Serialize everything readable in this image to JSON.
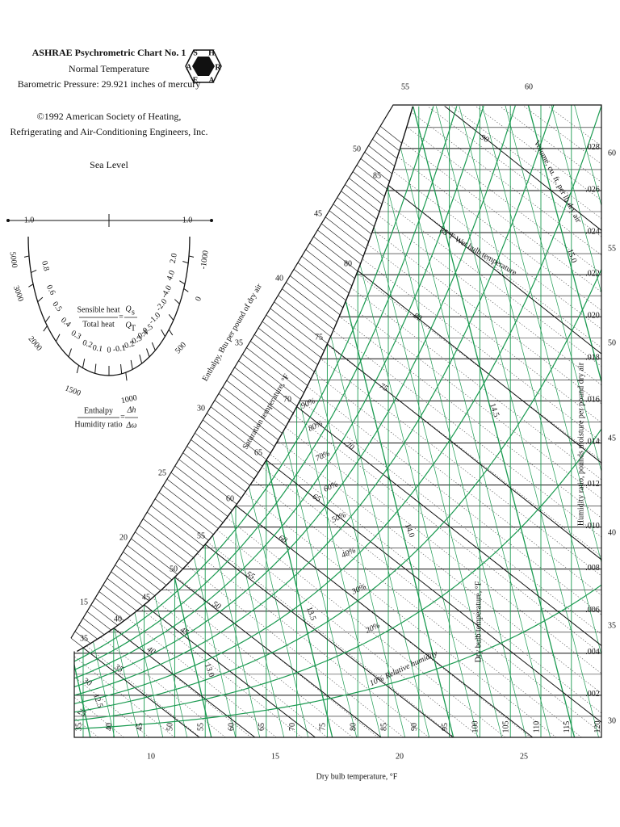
{
  "header": {
    "title": "ASHRAE Psychrometric Chart No. 1",
    "subtitle": "Normal Temperature",
    "pressure": "Barometric Pressure: 29.921 inches of mercury",
    "copyright": [
      "©1992 American Society of Heating,",
      "Refrigerating and Air-Conditioning Engineers, Inc."
    ],
    "location": "Sea Level",
    "logo": [
      "S",
      "H",
      "R",
      "A",
      "E",
      "A"
    ]
  },
  "protractor": {
    "end_labels": [
      "1.0",
      "1.0"
    ],
    "inner_labels": [
      "0.8",
      "0.6",
      "0.5",
      "0.4",
      "0.3",
      "0.2",
      "0.1",
      "0",
      "-0.1",
      "-0.2",
      "-0.3",
      "-0.4",
      "-0.5",
      "-1.0",
      "-2.0",
      "-4.0",
      "4.0",
      "2.0"
    ],
    "outer_labels": [
      "5000",
      "3000",
      "2000",
      "1500",
      "1000",
      "500",
      "0",
      "-1000"
    ],
    "sensible": {
      "numerator": "Sensible heat",
      "denominator": "Total heat",
      "equals": "=",
      "q_numerator": "Q",
      "q_numerator_sub": "s",
      "q_denominator": "Q",
      "q_denominator_sub": "T"
    },
    "enthalpy": {
      "numerator": "Enthalpy",
      "denominator": "Humidity ratio",
      "equals": "=",
      "d_numerator": "Δh",
      "d_denominator": "Δω"
    }
  },
  "chart": {
    "dry_bulb_labels": [
      "35",
      "40",
      "45",
      "50",
      "55",
      "60",
      "65",
      "70",
      "75",
      "80",
      "85",
      "90",
      "95",
      "100",
      "105",
      "110",
      "115",
      "120"
    ],
    "humidity_ratio_labels": [
      ".002",
      ".004",
      ".006",
      ".008",
      ".010",
      ".012",
      ".014",
      ".016",
      ".018",
      ".020",
      ".022",
      ".024",
      ".026",
      ".028"
    ],
    "right_saturation_labels": [
      "30",
      "35",
      "40",
      "45",
      "50",
      "55",
      "60"
    ],
    "bottom_enthalpy_labels": [
      "10",
      "15",
      "20",
      "25"
    ],
    "top_enthalpy_labels": [
      "55",
      "60"
    ],
    "enthalpy_scale_labels": [
      "15",
      "20",
      "25",
      "30",
      "35",
      "40",
      "45",
      "50"
    ],
    "saturation_labels": [
      "35",
      "40",
      "45",
      "50",
      "55",
      "60",
      "65",
      "70",
      "75",
      "80",
      "85"
    ],
    "wet_bulb_labels": [
      "90",
      "80",
      "75",
      "70",
      "65",
      "60",
      "55",
      "50",
      "45",
      "40",
      "35",
      "30",
      "25"
    ],
    "rh_labels": [
      "90%",
      "80%",
      "70%",
      "60%",
      "50%",
      "40%",
      "30%",
      "20%",
      "10% Relative humidity"
    ],
    "volume_labels": [
      "12.5",
      "13.0",
      "13.5",
      "14.0",
      "14.5",
      "15.0"
    ],
    "axis_titles": {
      "dry_bulb": "Dry bulb temperature, °F",
      "dry_bulb_inner": "Dry bulb temperature, °F",
      "humidity_ratio": "Humidity ratio, pounds moisture per pound dry air",
      "enthalpy": "Enthalpy, Btu per pound of dry air",
      "saturation": "Saturation temperature, °F",
      "volume": "Volume, cu. ft. per lb dry air",
      "wet_bulb": "85°F Wet bulb temperature"
    }
  }
}
